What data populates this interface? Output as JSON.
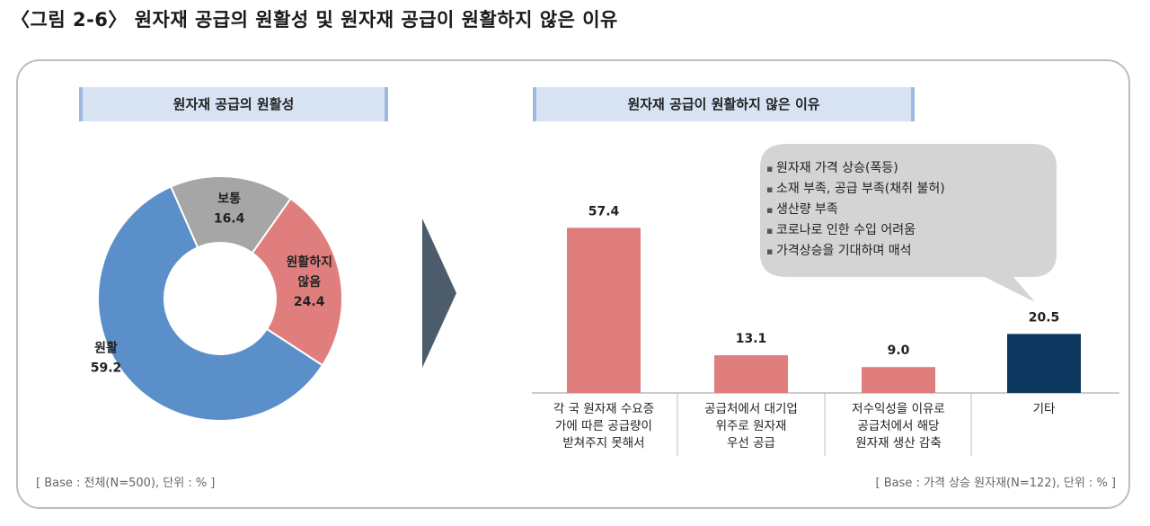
{
  "figure_title": "〈그림 2-6〉 원자재 공급의 원활성 및 원자재 공급이 원활하지 않은 이유",
  "left_panel": {
    "title": "원자재 공급의 원활성",
    "base_note": "[ Base : 전체(N=500), 단위 : % ]"
  },
  "right_panel": {
    "title": "원자재 공급이 원활하지 않은 이유",
    "base_note": "[ Base : 가격 상승 원자재(N=122), 단위 : % ]",
    "callout_items": [
      "원자재 가격 상승(폭등)",
      "소재 부족, 공급 부족(채취 불허)",
      "생산량 부족",
      "코로나로 인한 수입 어려움",
      "가격상승을 기대하며 매석"
    ]
  },
  "colors": {
    "smooth": "#5b8fc9",
    "normal": "#a6a6a6",
    "not_smooth": "#e07e7e",
    "bar_main": "#e07e7e",
    "bar_other": "#0e3860",
    "panel_title_bg": "#d7e3f3",
    "arrow": "#4d5c6a"
  },
  "chart_data": [
    {
      "type": "pie",
      "title": "원자재 공급의 원활성",
      "unit": "%",
      "slices": [
        {
          "label_lines": [
            "보통"
          ],
          "value": 16.4
        },
        {
          "label_lines": [
            "원활하지",
            "않음"
          ],
          "value": 24.4
        },
        {
          "label_lines": [
            "원활"
          ],
          "value": 59.2
        }
      ]
    },
    {
      "type": "bar",
      "title": "원자재 공급이 원활하지 않은 이유",
      "unit": "%",
      "categories": [
        [
          "각 국 원자재 수요증",
          "가에 따른 공급량이",
          "받쳐주지 못해서"
        ],
        [
          "공급처에서 대기업",
          "위주로 원자재",
          "우선 공급"
        ],
        [
          "저수익성을 이유로",
          "공급처에서 해당",
          "원자재 생산 감축"
        ],
        [
          "기타"
        ]
      ],
      "values": [
        57.4,
        13.1,
        9.0,
        20.5
      ],
      "value_labels": [
        "57.4",
        "13.1",
        "9.0",
        "20.5"
      ]
    }
  ]
}
